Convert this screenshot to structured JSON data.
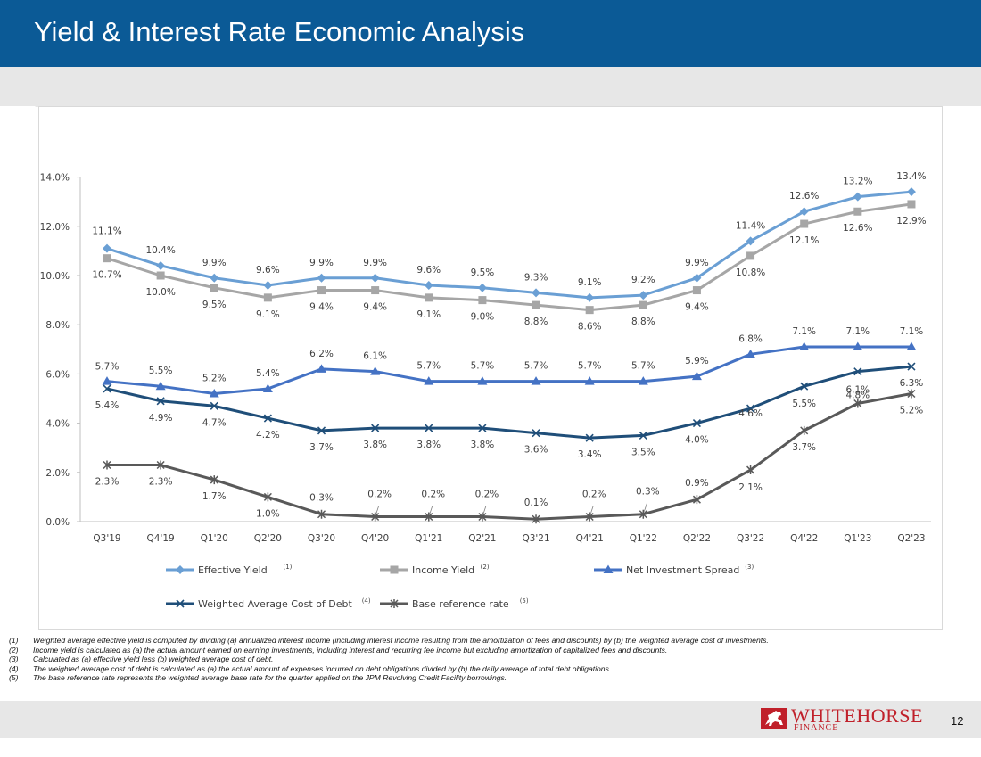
{
  "header": {
    "title": "Yield & Interest Rate Economic Analysis"
  },
  "colors": {
    "header_bg": "#0b5a96",
    "band_bg": "#e7e7e7",
    "brand_red": "#c0202a"
  },
  "chart_data": {
    "type": "line",
    "title": "",
    "xlabel": "",
    "ylabel": "",
    "ylim": [
      0,
      14
    ],
    "y_ticks": [
      "0.0%",
      "2.0%",
      "4.0%",
      "6.0%",
      "8.0%",
      "10.0%",
      "12.0%",
      "14.0%"
    ],
    "grid": false,
    "legend_position": "bottom",
    "categories": [
      "Q3'19",
      "Q4'19",
      "Q1'20",
      "Q2'20",
      "Q3'20",
      "Q4'20",
      "Q1'21",
      "Q2'21",
      "Q3'21",
      "Q4'21",
      "Q1'22",
      "Q2'22",
      "Q3'22",
      "Q4'22",
      "Q1'23",
      "Q2'23"
    ],
    "series": [
      {
        "name": "Effective Yield",
        "sup": "(1)",
        "color": "#6a9fd4",
        "marker": "diamond",
        "values": [
          11.1,
          10.4,
          9.9,
          9.6,
          9.9,
          9.9,
          9.6,
          9.5,
          9.3,
          9.1,
          9.2,
          9.9,
          11.4,
          12.6,
          13.2,
          13.4
        ],
        "labels": [
          "11.1%",
          "10.4%",
          "9.9%",
          "9.6%",
          "9.9%",
          "9.9%",
          "9.6%",
          "9.5%",
          "9.3%",
          "9.1%",
          "9.2%",
          "9.9%",
          "11.4%",
          "12.6%",
          "13.2%",
          "13.4%"
        ],
        "label_pos": "above"
      },
      {
        "name": "Income Yield",
        "sup": "(2)",
        "color": "#a6a6a6",
        "marker": "square",
        "values": [
          10.7,
          10.0,
          9.5,
          9.1,
          9.4,
          9.4,
          9.1,
          9.0,
          8.8,
          8.6,
          8.8,
          9.4,
          10.8,
          12.1,
          12.6,
          12.9
        ],
        "labels": [
          "10.7%",
          "10.0%",
          "9.5%",
          "9.1%",
          "9.4%",
          "9.4%",
          "9.1%",
          "9.0%",
          "8.8%",
          "8.6%",
          "8.8%",
          "9.4%",
          "10.8%",
          "12.1%",
          "12.6%",
          "12.9%"
        ],
        "label_pos": "below"
      },
      {
        "name": "Net Investment Spread",
        "sup": "(3)",
        "color": "#4472c4",
        "marker": "triangle",
        "values": [
          5.7,
          5.5,
          5.2,
          5.4,
          6.2,
          6.1,
          5.7,
          5.7,
          5.7,
          5.7,
          5.7,
          5.9,
          6.8,
          7.1,
          7.1,
          7.1
        ],
        "labels": [
          "5.7%",
          "5.5%",
          "5.2%",
          "5.4%",
          "6.2%",
          "6.1%",
          "5.7%",
          "5.7%",
          "5.7%",
          "5.7%",
          "5.7%",
          "5.9%",
          "6.8%",
          "7.1%",
          "7.1%",
          "7.1%"
        ],
        "label_pos": "above"
      },
      {
        "name": "Weighted Average Cost of Debt",
        "sup": "(4)",
        "color": "#1f4e79",
        "marker": "x",
        "values": [
          5.4,
          4.9,
          4.7,
          4.2,
          3.7,
          3.8,
          3.8,
          3.8,
          3.6,
          3.4,
          3.5,
          4.0,
          4.6,
          5.5,
          6.1,
          6.3
        ],
        "labels": [
          "5.4%",
          "4.9%",
          "4.7%",
          "4.2%",
          "3.7%",
          "3.8%",
          "3.8%",
          "3.8%",
          "3.6%",
          "3.4%",
          "3.5%",
          "4.0%",
          "4.6%",
          "5.5%",
          "6.1%",
          "6.3%"
        ],
        "label_pos": "below"
      },
      {
        "name": "Base reference rate",
        "sup": "(5)",
        "color": "#595959",
        "marker": "star",
        "values": [
          2.3,
          2.3,
          1.7,
          1.0,
          0.3,
          0.2,
          0.2,
          0.2,
          0.1,
          0.2,
          0.3,
          0.9,
          2.1,
          3.7,
          4.8,
          5.2
        ],
        "labels": [
          "2.3%",
          "2.3%",
          "1.7%",
          "1.0%",
          "0.3%",
          "0.2%",
          "0.2%",
          "0.2%",
          "0.1%",
          "0.2%",
          "0.3%",
          "0.9%",
          "2.1%",
          "3.7%",
          "4.8%",
          "5.2%"
        ],
        "label_pos": "mixed"
      }
    ]
  },
  "footnotes": [
    {
      "num": "(1)",
      "text": "Weighted average effective yield is computed by dividing (a) annualized interest income (including interest income resulting from the amortization of fees and discounts) by (b) the weighted average cost of investments."
    },
    {
      "num": "(2)",
      "text": "Income yield is calculated as (a) the actual amount earned on earning investments, including interest and recurring fee income but excluding amortization of capitalized fees and discounts."
    },
    {
      "num": "(3)",
      "text": "Calculated as (a) effective yield less (b) weighted average cost of debt."
    },
    {
      "num": "(4)",
      "text": "The weighted average cost of debt is calculated as (a) the actual amount of expenses incurred on debt obligations divided by (b) the daily average of total debt obligations."
    },
    {
      "num": "(5)",
      "text": "The base reference rate represents the weighted average base rate for the quarter applied on the JPM Revolving Credit Facility borrowings."
    }
  ],
  "footer": {
    "logo_main": "WHITEHORSE",
    "logo_sub": "FINANCE",
    "page_number": "12"
  }
}
